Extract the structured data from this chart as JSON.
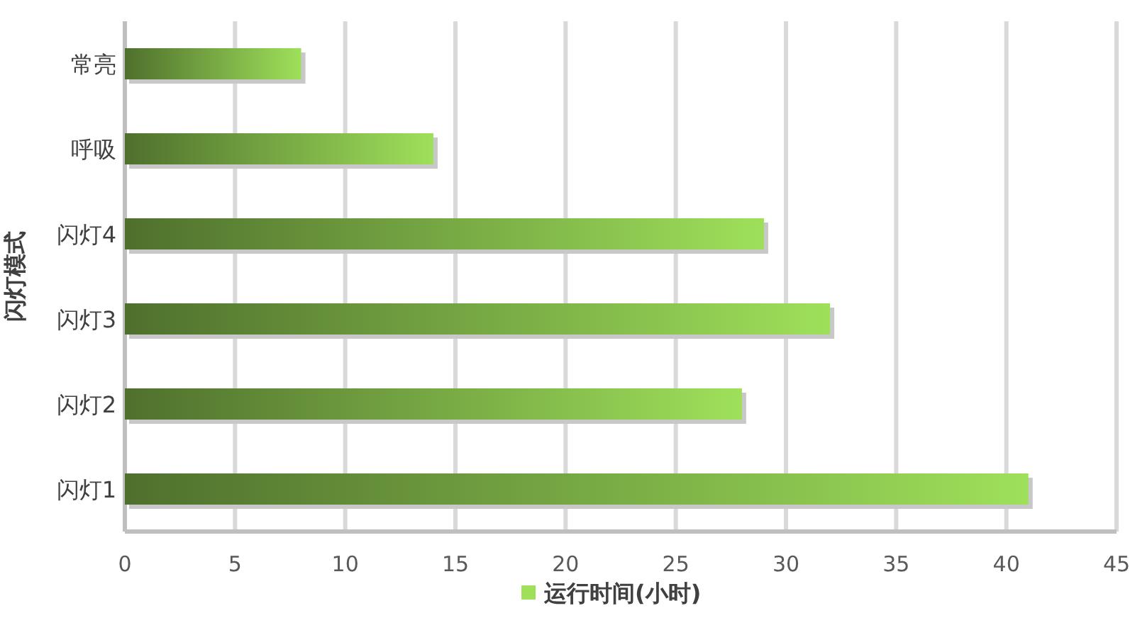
{
  "chart_data": {
    "type": "bar",
    "orientation": "horizontal",
    "ylabel": "闪灯模式",
    "categories": [
      "常亮",
      "呼吸",
      "闪灯4",
      "闪灯3",
      "闪灯2",
      "闪灯1"
    ],
    "series": [
      {
        "name": "运行时间(小时)",
        "color": "#9ee05a",
        "values": [
          8,
          14,
          29,
          32,
          28,
          41
        ]
      }
    ],
    "xlim": [
      0,
      45
    ],
    "xticks": [
      0,
      5,
      10,
      15,
      20,
      25,
      30,
      35,
      40,
      45
    ],
    "grid": "x",
    "legend": "bottom"
  }
}
